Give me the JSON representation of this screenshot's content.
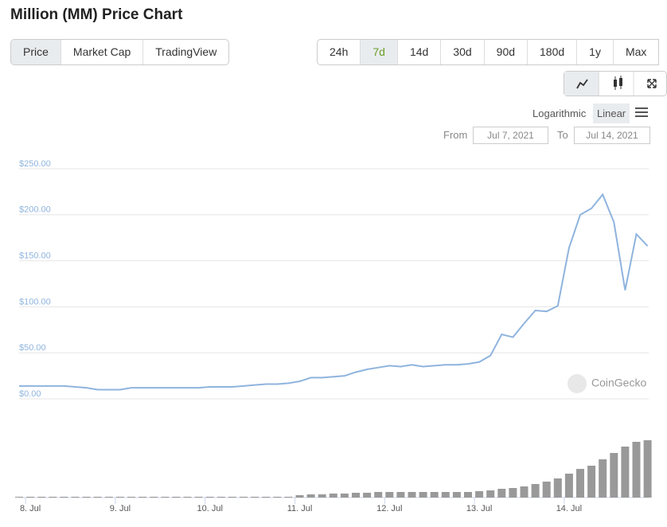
{
  "header": {
    "title": "Million (MM) Price Chart"
  },
  "tabs": [
    "Price",
    "Market Cap",
    "TradingView"
  ],
  "ranges": [
    "24h",
    "7d",
    "14d",
    "30d",
    "90d",
    "180d",
    "1y",
    "Max"
  ],
  "scale_options": [
    "Logarithmic",
    "Linear"
  ],
  "date_range": {
    "from_label": "From",
    "from": "Jul 7, 2021",
    "to_label": "To",
    "to": "Jul 14, 2021"
  },
  "watermark": "CoinGecko",
  "chart_data": {
    "type": "line",
    "categories": [
      null,
      "8. Jul",
      null,
      null,
      null,
      null,
      null,
      null,
      null,
      "9. Jul",
      null,
      null,
      null,
      null,
      null,
      null,
      null,
      "10. Jul",
      null,
      null,
      null,
      null,
      null,
      null,
      null,
      "11. Jul",
      null,
      null,
      null,
      null,
      null,
      null,
      null,
      "12. Jul",
      null,
      null,
      null,
      null,
      null,
      null,
      null,
      "13. Jul",
      null,
      null,
      null,
      null,
      null,
      null,
      null,
      "14. Jul",
      null,
      null,
      null,
      null,
      null,
      null,
      null
    ],
    "series": [
      {
        "name": "Price",
        "color": "#8fb4de",
        "values": [
          14,
          14,
          14,
          14,
          14,
          13,
          12,
          10,
          10,
          10,
          12,
          12,
          12,
          12,
          12,
          12,
          12,
          13,
          13,
          13,
          14,
          15,
          16,
          16,
          17,
          19,
          23,
          23,
          24,
          25,
          29,
          32,
          34,
          36,
          35,
          37,
          35,
          36,
          37,
          37,
          38,
          40,
          47,
          70,
          67,
          82,
          96,
          95,
          101,
          164,
          200,
          207,
          222,
          192,
          118,
          179,
          166
        ]
      },
      {
        "name": "Volume",
        "color": "#999999",
        "values": [
          1,
          1,
          1,
          1,
          1,
          1,
          1,
          1,
          1,
          1,
          1,
          1,
          1,
          1,
          1,
          1,
          1,
          1,
          1,
          1,
          1,
          1,
          1,
          1,
          1,
          3,
          4,
          4,
          5,
          5,
          6,
          6,
          7,
          7,
          7,
          7,
          7,
          7,
          7,
          7,
          7,
          8,
          9,
          11,
          12,
          14,
          17,
          20,
          24,
          30,
          36,
          40,
          48,
          56,
          64,
          70,
          72
        ]
      }
    ],
    "ylim": [
      0,
      250
    ],
    "yticks": [
      {
        "value": 0,
        "label": "$0.00"
      },
      {
        "value": 50,
        "label": "$50.00"
      },
      {
        "value": 100,
        "label": "$100.00"
      },
      {
        "value": 150,
        "label": "$150.00"
      },
      {
        "value": 200,
        "label": "$200.00"
      },
      {
        "value": 250,
        "label": "$250.00"
      }
    ],
    "grid": true
  }
}
